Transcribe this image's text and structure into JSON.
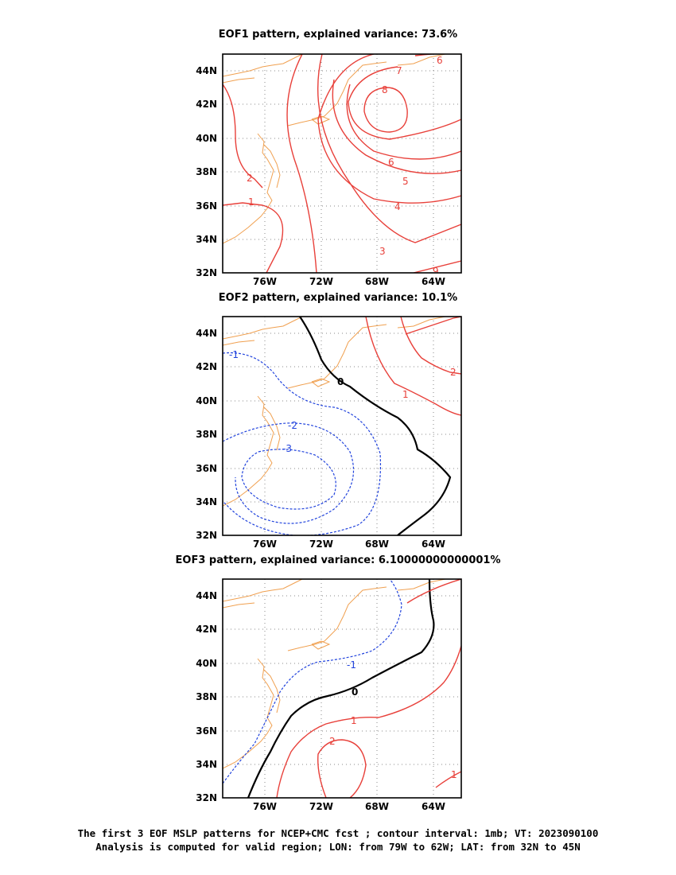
{
  "panels": [
    {
      "title": "EOF1 pattern, explained variance: 73.6%",
      "x_ticks": [
        "76W",
        "72W",
        "68W",
        "64W"
      ],
      "y_ticks": [
        "44N",
        "42N",
        "40N",
        "38N",
        "36N",
        "34N",
        "32N"
      ],
      "contour_labels": [
        "8",
        "7",
        "6",
        "6",
        "5",
        "4",
        "3",
        "2",
        "1",
        "9"
      ]
    },
    {
      "title": "EOF2 pattern, explained variance: 10.1%",
      "x_ticks": [
        "76W",
        "72W",
        "68W",
        "64W"
      ],
      "y_ticks": [
        "44N",
        "42N",
        "40N",
        "38N",
        "36N",
        "34N",
        "32N"
      ],
      "contour_labels": [
        "-1",
        "-2",
        "-3",
        "0",
        "1",
        "2"
      ]
    },
    {
      "title": "EOF3 pattern, explained variance: 6.10000000000001%",
      "x_ticks": [
        "76W",
        "72W",
        "68W",
        "64W"
      ],
      "y_ticks": [
        "44N",
        "42N",
        "40N",
        "38N",
        "36N",
        "34N",
        "32N"
      ],
      "contour_labels": [
        "-1",
        "0",
        "1",
        "2",
        "1"
      ]
    }
  ],
  "footer": {
    "line1": "The first 3 EOF MSLP patterns for NCEP+CMC fcst ; contour interval: 1mb; VT: 2023090100",
    "line2": "Analysis is computed for valid region; LON: from 79W to 62W; LAT: from 32N to 45N"
  },
  "colors": {
    "positive_contour": "#e8403a",
    "negative_contour": "#2244dd",
    "zero_contour": "#000000",
    "coastline": "#f0a050",
    "grid": "#888888"
  }
}
